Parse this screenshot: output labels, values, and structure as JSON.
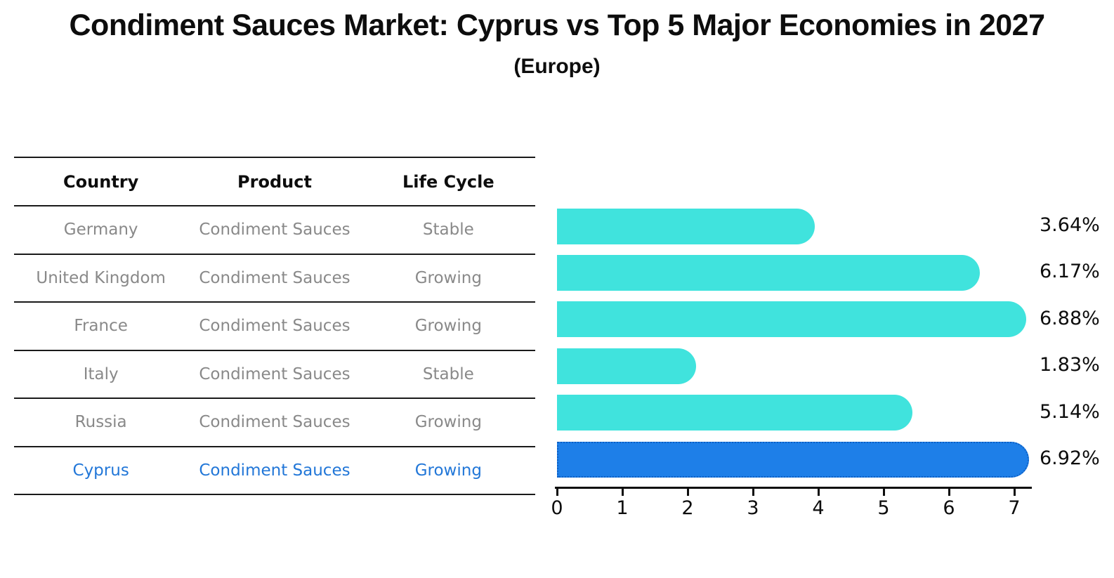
{
  "title": "Condiment Sauces Market: Cyprus vs Top 5 Major Economies in 2027",
  "subtitle": "(Europe)",
  "table": {
    "headers": [
      "Country",
      "Product",
      "Life Cycle"
    ],
    "rows": [
      {
        "country": "Germany",
        "product": "Condiment Sauces",
        "life_cycle": "Stable",
        "highlighted": false
      },
      {
        "country": "United Kingdom",
        "product": "Condiment Sauces",
        "life_cycle": "Growing",
        "highlighted": false
      },
      {
        "country": "France",
        "product": "Condiment Sauces",
        "life_cycle": "Growing",
        "highlighted": false
      },
      {
        "country": "Italy",
        "product": "Condiment Sauces",
        "life_cycle": "Stable",
        "highlighted": false
      },
      {
        "country": "Russia",
        "product": "Condiment Sauces",
        "life_cycle": "Growing",
        "highlighted": false
      },
      {
        "country": "Cyprus",
        "product": "Condiment Sauces",
        "life_cycle": "Growing",
        "highlighted": true
      }
    ]
  },
  "chart_data": {
    "type": "bar",
    "orientation": "horizontal",
    "title": "Condiment Sauces Market: Cyprus vs Top 5 Major Economies in 2027 (Europe)",
    "categories": [
      "Germany",
      "United Kingdom",
      "France",
      "Italy",
      "Russia",
      "Cyprus"
    ],
    "values": [
      3.64,
      6.17,
      6.88,
      1.83,
      5.14,
      6.92
    ],
    "value_labels": [
      "3.64%",
      "6.17%",
      "6.88%",
      "1.83%",
      "5.14%",
      "6.92%"
    ],
    "x_ticks": [
      "0",
      "1",
      "2",
      "3",
      "4",
      "5",
      "6",
      "7"
    ],
    "xlim": [
      0,
      7.3
    ],
    "grid": false,
    "legend": false,
    "highlight_index": 5
  },
  "colors": {
    "bar_default": "#40e3dd",
    "bar_highlight": "#1e7fe8",
    "bar_highlight_border": "#0d5fc4",
    "highlight_text": "#2277d8",
    "text_dark": "#0d0d0d",
    "text_gray": "#898989",
    "line": "#1a1a1a"
  }
}
